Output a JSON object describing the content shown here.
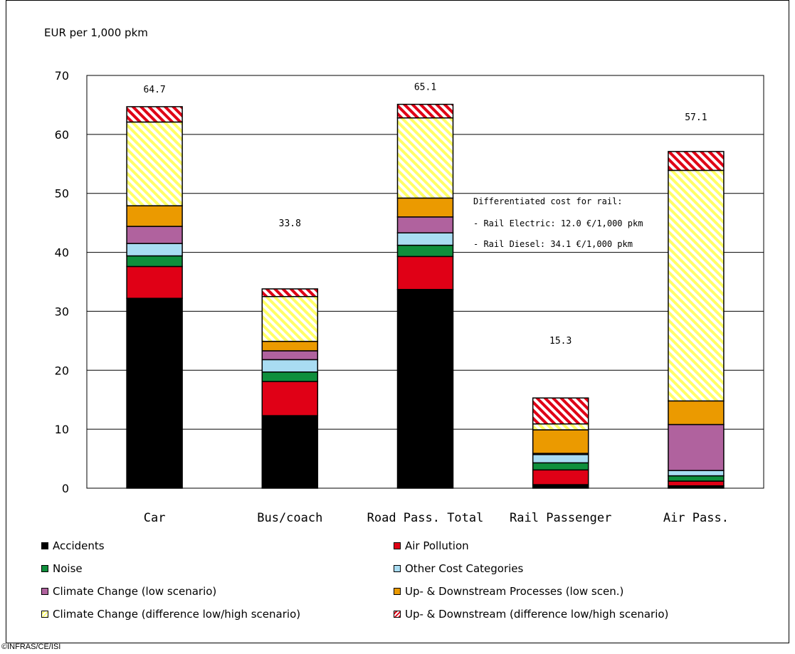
{
  "chart_data": {
    "type": "bar",
    "stacked": true,
    "ylabel": "EUR per 1,000 pkm",
    "ylim": [
      0,
      70
    ],
    "yticks": [
      0,
      10,
      20,
      30,
      40,
      50,
      60,
      70
    ],
    "grid": true,
    "categories": [
      "Car",
      "Bus/coach",
      "Road Pass. Total",
      "Rail Passenger",
      "Air Pass."
    ],
    "totals": [
      "64.7",
      "33.8",
      "65.1",
      "15.3",
      "57.1"
    ],
    "series": [
      {
        "name": "Accidents",
        "color": "#000000",
        "pattern": "solid",
        "values": [
          32.2,
          12.3,
          33.7,
          0.6,
          0.4
        ]
      },
      {
        "name": "Air Pollution",
        "color": "#e00016",
        "pattern": "solid",
        "values": [
          5.4,
          5.8,
          5.6,
          2.5,
          0.8
        ]
      },
      {
        "name": "Noise",
        "color": "#0f8f3c",
        "pattern": "solid",
        "values": [
          1.8,
          1.6,
          1.9,
          1.2,
          0.9
        ]
      },
      {
        "name": "Other Cost Categories",
        "color": "#a9dcf2",
        "pattern": "solid",
        "values": [
          2.1,
          2.1,
          2.1,
          1.4,
          0.9
        ]
      },
      {
        "name": "Climate Change (low scenario)",
        "color": "#b0629e",
        "pattern": "solid",
        "values": [
          2.9,
          1.5,
          2.7,
          0.2,
          7.8
        ]
      },
      {
        "name": "Up- & Downstream Processes (low scen.)",
        "color": "#eb9a00",
        "pattern": "solid",
        "values": [
          3.5,
          1.6,
          3.2,
          4.0,
          4.0
        ]
      },
      {
        "name": "Climate Change (difference low/high scenario)",
        "color": "#ffff66",
        "pattern": "hatch",
        "values": [
          14.2,
          7.6,
          13.6,
          1.0,
          39.1
        ]
      },
      {
        "name": "Up- & Downstream (difference low/high scenario)",
        "color": "#e00016",
        "pattern": "hatch",
        "values": [
          2.6,
          1.3,
          2.3,
          4.4,
          3.2
        ]
      }
    ]
  },
  "annotation": {
    "line1": "Differentiated cost for rail:",
    "line2": "- Rail Electric:  12.0  €/1,000  pkm",
    "line3": "- Rail Diesel:  34.1  €/1,000  pkm"
  },
  "legend": {
    "items": [
      "Accidents",
      "Air Pollution",
      "Noise",
      "Other Cost Categories",
      "Climate Change (low scenario)",
      "Up- & Downstream Processes (low scen.)",
      "Climate Change (difference low/high scenario)",
      "Up- & Downstream (difference low/high scenario)"
    ]
  },
  "copyright": "©INFRAS/CE/ISI"
}
